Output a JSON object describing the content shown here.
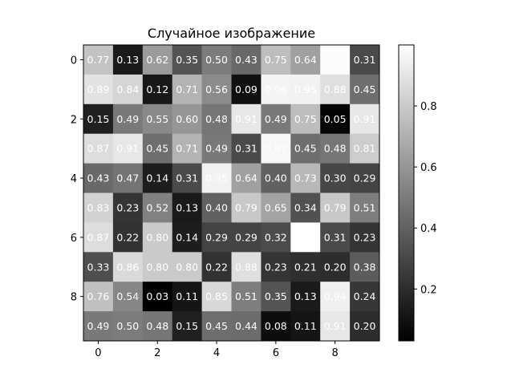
{
  "chart_data": {
    "type": "heatmap",
    "title": "Случайное изображение",
    "colormap": "gray",
    "text_color": "#ffffff",
    "x_ticks": [
      0,
      2,
      4,
      6,
      8
    ],
    "y_ticks": [
      0,
      2,
      4,
      6,
      8
    ],
    "colorbar": {
      "range": [
        0.03,
        1.0
      ],
      "ticks": [
        0.2,
        0.4,
        0.6,
        0.8
      ],
      "tick_labels": [
        "0.2",
        "0.4",
        "0.6",
        "0.8"
      ]
    },
    "values": [
      [
        0.77,
        0.13,
        0.62,
        0.35,
        0.5,
        0.43,
        0.75,
        0.64,
        0.99,
        0.31
      ],
      [
        0.89,
        0.84,
        0.12,
        0.71,
        0.56,
        0.09,
        0.96,
        0.95,
        0.88,
        0.45
      ],
      [
        0.15,
        0.49,
        0.55,
        0.6,
        0.48,
        0.91,
        0.49,
        0.75,
        0.05,
        0.91
      ],
      [
        0.87,
        0.91,
        0.45,
        0.71,
        0.49,
        0.31,
        0.97,
        0.45,
        0.48,
        0.81
      ],
      [
        0.43,
        0.47,
        0.14,
        0.31,
        0.95,
        0.64,
        0.4,
        0.73,
        0.3,
        0.29
      ],
      [
        0.83,
        0.23,
        0.52,
        0.13,
        0.4,
        0.79,
        0.65,
        0.34,
        0.79,
        0.51
      ],
      [
        0.87,
        0.22,
        0.8,
        0.14,
        0.29,
        0.29,
        0.32,
        1.0,
        0.31,
        0.23
      ],
      [
        0.33,
        0.86,
        0.8,
        0.8,
        0.22,
        0.88,
        0.23,
        0.21,
        0.2,
        0.38
      ],
      [
        0.76,
        0.54,
        0.03,
        0.11,
        0.85,
        0.51,
        0.35,
        0.13,
        0.94,
        0.24
      ],
      [
        0.49,
        0.5,
        0.48,
        0.15,
        0.45,
        0.44,
        0.08,
        0.11,
        0.91,
        0.2
      ]
    ],
    "labels": [
      [
        "0.77",
        "0.13",
        "0.62",
        "0.35",
        "0.50",
        "0.43",
        "0.75",
        "0.64",
        "0.99",
        "0.31"
      ],
      [
        "0.89",
        "0.84",
        "0.12",
        "0.71",
        "0.56",
        "0.09",
        "0.96",
        "0.95",
        "0.88",
        "0.45"
      ],
      [
        "0.15",
        "0.49",
        "0.55",
        "0.60",
        "0.48",
        "0.91",
        "0.49",
        "0.75",
        "0.05",
        "0.91"
      ],
      [
        "0.87",
        "0.91",
        "0.45",
        "0.71",
        "0.49",
        "0.31",
        "0.97",
        "0.45",
        "0.48",
        "0.81"
      ],
      [
        "0.43",
        "0.47",
        "0.14",
        "0.31",
        "0.95",
        "0.64",
        "0.40",
        "0.73",
        "0.30",
        "0.29"
      ],
      [
        "0.83",
        "0.23",
        "0.52",
        "0.13",
        "0.40",
        "0.79",
        "0.65",
        "0.34",
        "0.79",
        "0.51"
      ],
      [
        "0.87",
        "0.22",
        "0.80",
        "0.14",
        "0.29",
        "0.29",
        "0.32",
        "1.00",
        "0.31",
        "0.23"
      ],
      [
        "0.33",
        "0.86",
        "0.80",
        "0.80",
        "0.22",
        "0.88",
        "0.23",
        "0.21",
        "0.20",
        "0.38"
      ],
      [
        "0.76",
        "0.54",
        "0.03",
        "0.11",
        "0.85",
        "0.51",
        "0.35",
        "0.13",
        "0.94",
        "0.24"
      ],
      [
        "0.49",
        "0.50",
        "0.48",
        "0.15",
        "0.45",
        "0.44",
        "0.08",
        "0.11",
        "0.91",
        "0.20"
      ]
    ]
  }
}
